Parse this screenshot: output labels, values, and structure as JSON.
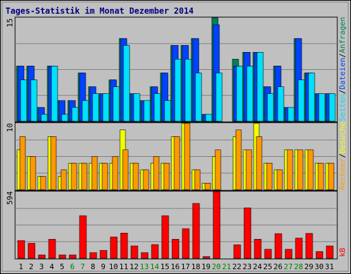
{
  "colors": {
    "background": "#c0c0c0",
    "grid": "#808080",
    "title": "#000080",
    "visits": "#00805c",
    "pages": "#0042ff",
    "files": "#00e0ff",
    "hits": "#f0ff00",
    "visitors": "#ff9900",
    "kb": "#ff0000",
    "day_weekday": "#000000",
    "day_weekend": "#008000"
  },
  "chart_data": [
    {
      "type": "bar",
      "panel": "top",
      "title": "Tages-Statistik im Monat Dezember 2014",
      "ymax_label": "15",
      "ylim": [
        0,
        15
      ],
      "ylabel_parts": [
        "Anfragen",
        "/",
        "Dateien",
        "/",
        "Seiten"
      ],
      "categories": [
        "1",
        "2",
        "3",
        "4",
        "5",
        "6",
        "7",
        "8",
        "9",
        "10",
        "11",
        "12",
        "13",
        "14",
        "15",
        "16",
        "17",
        "18",
        "19",
        "20",
        "21",
        "22",
        "23",
        "24",
        "25",
        "26",
        "27",
        "28",
        "29",
        "30",
        "31"
      ],
      "weekend_days": [
        "6",
        "7",
        "13",
        "14",
        "20",
        "21",
        "27",
        "28"
      ],
      "series": [
        {
          "name": "Anfragen",
          "values": [
            8,
            8,
            2,
            8,
            3,
            3,
            7,
            5,
            4,
            6,
            12,
            4,
            3,
            5,
            7,
            11,
            11,
            12,
            1,
            15,
            0,
            9,
            10,
            10,
            5,
            8,
            2,
            12,
            7,
            4,
            4
          ]
        },
        {
          "name": "Dateien",
          "values": [
            8,
            8,
            2,
            8,
            3,
            3,
            7,
            5,
            4,
            6,
            12,
            4,
            3,
            5,
            7,
            11,
            11,
            12,
            1,
            14,
            0,
            8,
            10,
            10,
            5,
            8,
            2,
            12,
            7,
            4,
            4
          ]
        },
        {
          "name": "Seiten",
          "values": [
            6,
            6,
            1,
            8,
            1,
            2,
            3,
            4,
            4,
            5,
            11,
            4,
            3,
            4,
            3,
            9,
            9,
            7,
            1,
            7,
            0,
            8,
            8,
            10,
            4,
            5,
            2,
            6,
            7,
            4,
            4
          ]
        }
      ]
    },
    {
      "type": "bar",
      "panel": "middle",
      "ymax_label": "10",
      "ylim": [
        0,
        10
      ],
      "ylabel_parts": [
        "Besuche",
        "/",
        "Rechner"
      ],
      "categories": [
        "1",
        "2",
        "3",
        "4",
        "5",
        "6",
        "7",
        "8",
        "9",
        "10",
        "11",
        "12",
        "13",
        "14",
        "15",
        "16",
        "17",
        "18",
        "19",
        "20",
        "21",
        "22",
        "23",
        "24",
        "25",
        "26",
        "27",
        "28",
        "29",
        "30",
        "31"
      ],
      "series": [
        {
          "name": "Besuche",
          "values": [
            6,
            5,
            2,
            8,
            2,
            4,
            4,
            4,
            4,
            4,
            9,
            4,
            3,
            4,
            4,
            8,
            10,
            3,
            1,
            5,
            0,
            8,
            6,
            10,
            4,
            3,
            6,
            6,
            6,
            4,
            4
          ]
        },
        {
          "name": "Rechner",
          "values": [
            8,
            5,
            2,
            8,
            3,
            4,
            4,
            5,
            4,
            5,
            6,
            4,
            3,
            5,
            4,
            8,
            10,
            3,
            1,
            6,
            0,
            9,
            6,
            8,
            4,
            3,
            6,
            6,
            6,
            4,
            4
          ]
        }
      ]
    },
    {
      "type": "bar",
      "panel": "bottom",
      "ymax_label": "594",
      "ylim": [
        0,
        594
      ],
      "ylabel_parts": [
        "kB"
      ],
      "categories": [
        "1",
        "2",
        "3",
        "4",
        "5",
        "6",
        "7",
        "8",
        "9",
        "10",
        "11",
        "12",
        "13",
        "14",
        "15",
        "16",
        "17",
        "18",
        "19",
        "20",
        "21",
        "22",
        "23",
        "24",
        "25",
        "26",
        "27",
        "28",
        "29",
        "30",
        "31"
      ],
      "series": [
        {
          "name": "kB",
          "values": [
            158,
            134,
            30,
            170,
            30,
            30,
            380,
            50,
            70,
            190,
            225,
            110,
            50,
            122,
            380,
            170,
            264,
            490,
            15,
            594,
            0,
            120,
            450,
            170,
            80,
            220,
            80,
            180,
            222,
            60,
            110
          ]
        }
      ]
    }
  ]
}
